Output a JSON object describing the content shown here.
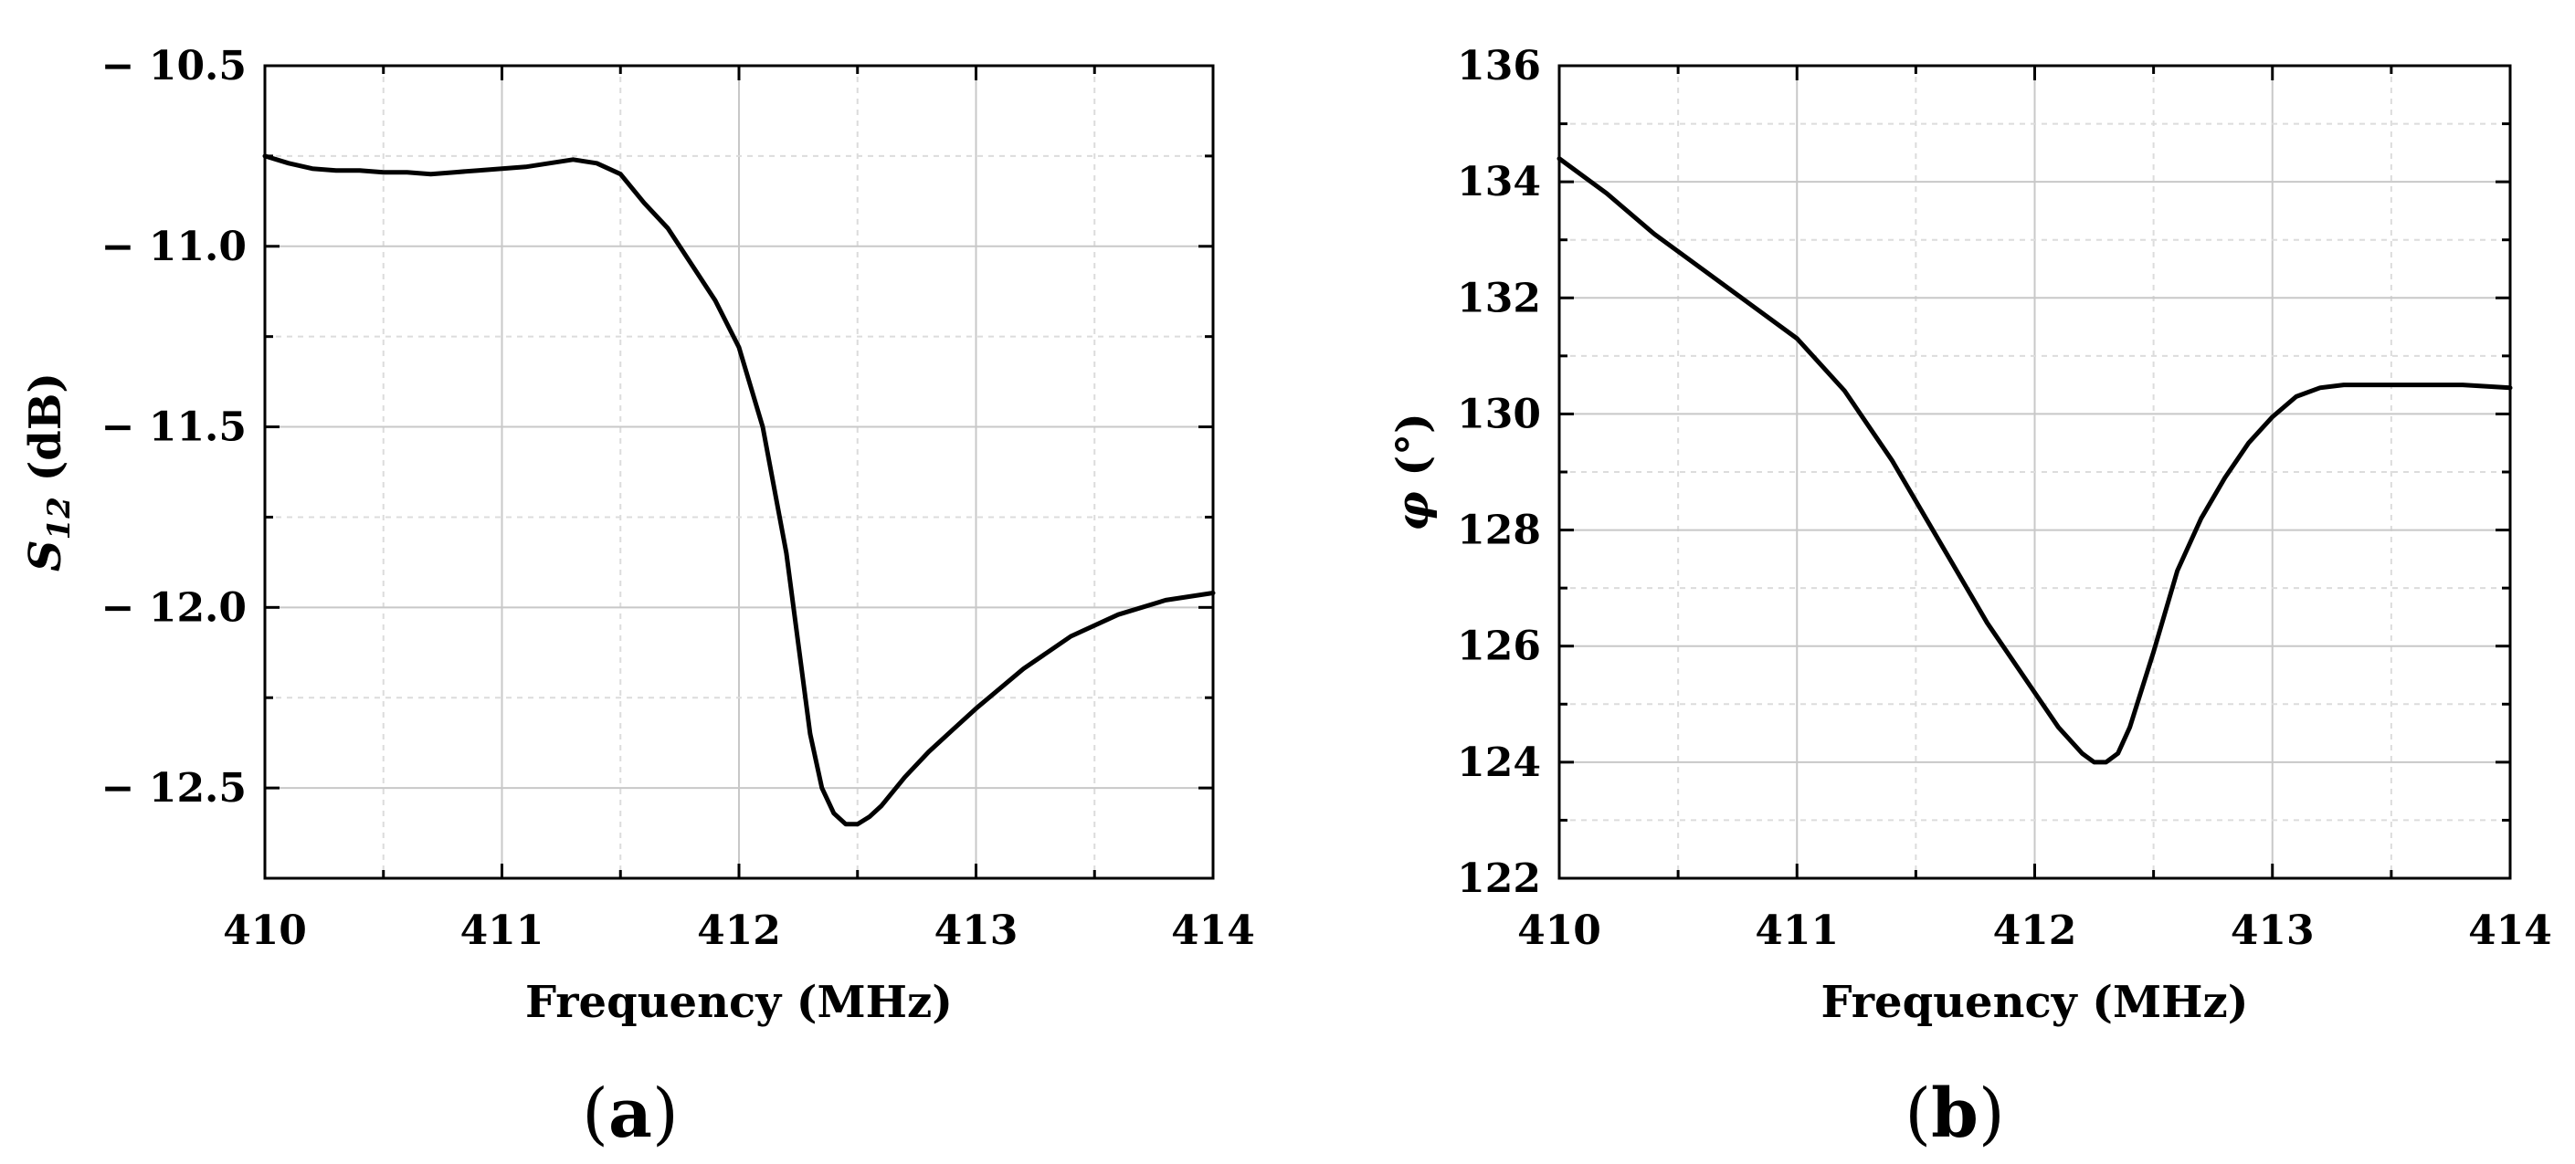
{
  "chart_data": [
    {
      "type": "line",
      "panel_label": "a",
      "xlabel": "Frequency (MHz)",
      "ylabel_symbol": "S",
      "ylabel_subscript": "12",
      "ylabel_unit": "(dB)",
      "xlim": [
        410,
        414
      ],
      "ylim": [
        -12.75,
        -10.5
      ],
      "x_ticks": [
        410,
        411,
        412,
        413,
        414
      ],
      "x_tick_labels": [
        "410",
        "411",
        "412",
        "413",
        "414"
      ],
      "y_ticks": [
        -10.5,
        -11.0,
        -11.5,
        -12.0,
        -12.5
      ],
      "y_tick_labels": [
        "− 10.5",
        "− 11.0",
        "− 11.5",
        "− 12.0",
        "− 12.5"
      ],
      "grid": true,
      "series": [
        {
          "x": [
            410.0,
            410.1,
            410.2,
            410.3,
            410.4,
            410.5,
            410.6,
            410.7,
            410.8,
            410.9,
            411.0,
            411.1,
            411.2,
            411.3,
            411.4,
            411.5,
            411.6,
            411.7,
            411.8,
            411.9,
            412.0,
            412.1,
            412.2,
            412.25,
            412.3,
            412.35,
            412.4,
            412.45,
            412.5,
            412.55,
            412.6,
            412.7,
            412.8,
            412.9,
            413.0,
            413.2,
            413.4,
            413.6,
            413.8,
            414.0
          ],
          "y": [
            -10.75,
            -10.77,
            -10.785,
            -10.79,
            -10.79,
            -10.795,
            -10.795,
            -10.8,
            -10.795,
            -10.79,
            -10.785,
            -10.78,
            -10.77,
            -10.76,
            -10.77,
            -10.8,
            -10.88,
            -10.95,
            -11.05,
            -11.15,
            -11.28,
            -11.5,
            -11.85,
            -12.1,
            -12.35,
            -12.5,
            -12.57,
            -12.6,
            -12.6,
            -12.58,
            -12.55,
            -12.47,
            -12.4,
            -12.34,
            -12.28,
            -12.17,
            -12.08,
            -12.02,
            -11.98,
            -11.96
          ]
        }
      ]
    },
    {
      "type": "line",
      "panel_label": "b",
      "xlabel": "Frequency (MHz)",
      "ylabel_symbol": "φ",
      "ylabel_unit": "(°)",
      "xlim": [
        410,
        414
      ],
      "ylim": [
        122,
        136
      ],
      "x_ticks": [
        410,
        411,
        412,
        413,
        414
      ],
      "x_tick_labels": [
        "410",
        "411",
        "412",
        "413",
        "414"
      ],
      "y_ticks": [
        122,
        124,
        126,
        128,
        130,
        132,
        134,
        136
      ],
      "y_tick_labels": [
        "122",
        "124",
        "126",
        "128",
        "130",
        "132",
        "134",
        "136"
      ],
      "grid": true,
      "series": [
        {
          "x": [
            410.0,
            410.2,
            410.4,
            410.6,
            410.8,
            411.0,
            411.2,
            411.4,
            411.6,
            411.8,
            412.0,
            412.1,
            412.2,
            412.25,
            412.3,
            412.35,
            412.4,
            412.5,
            412.6,
            412.7,
            412.8,
            412.9,
            413.0,
            413.1,
            413.2,
            413.3,
            413.4,
            413.6,
            413.8,
            414.0
          ],
          "y": [
            134.4,
            133.8,
            133.1,
            132.5,
            131.9,
            131.3,
            130.4,
            129.2,
            127.8,
            126.4,
            125.2,
            124.6,
            124.15,
            124.0,
            124.0,
            124.15,
            124.6,
            125.9,
            127.3,
            128.2,
            128.9,
            129.5,
            129.95,
            130.3,
            130.45,
            130.5,
            130.5,
            130.5,
            130.5,
            130.45
          ]
        }
      ]
    }
  ]
}
